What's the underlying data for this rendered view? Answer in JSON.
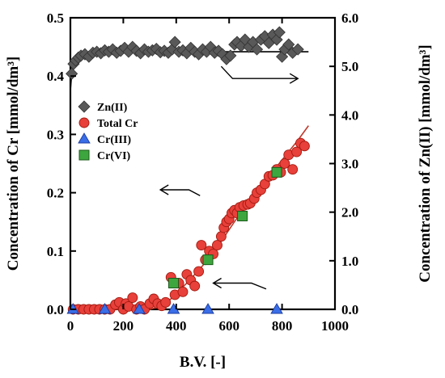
{
  "chart_data": {
    "type": "scatter",
    "xlabel": "B.V. [-]",
    "ylabel_left": "Concentration of Cr [mmol/dm³]",
    "ylabel_right": "Concentration of Zn(II) [mmol/dm³]",
    "xlim": [
      0,
      1000
    ],
    "ylim_left": [
      0,
      0.5
    ],
    "ylim_right": [
      0,
      6
    ],
    "x_ticks": [
      0,
      200,
      400,
      600,
      800,
      1000
    ],
    "x_tick_labels": [
      "0",
      "200",
      "400",
      "600",
      "800",
      "1000"
    ],
    "y_left_ticks": [
      0,
      0.1,
      0.2,
      0.3,
      0.4,
      0.5
    ],
    "y_left_tick_labels": [
      "0.0",
      "0.1",
      "0.2",
      "0.3",
      "0.4",
      "0.5"
    ],
    "y_right_ticks": [
      0,
      1,
      2,
      3,
      4,
      5,
      6
    ],
    "y_right_tick_labels": [
      "0.0",
      "1.0",
      "2.0",
      "3.0",
      "4.0",
      "5.0",
      "6.0"
    ],
    "grid": false,
    "legend_position": "left-middle",
    "colors": {
      "zn": "#595959",
      "total_cr": "#e8403a",
      "cr3": "#3a6ee8",
      "cr6": "#3ea63e",
      "fit": "#c0392b"
    },
    "series": [
      {
        "name": "Zn(II)",
        "axis": "right",
        "marker": "diamond",
        "points": [
          [
            5,
            4.85
          ],
          [
            12,
            5.05
          ],
          [
            20,
            5.12
          ],
          [
            30,
            5.18
          ],
          [
            40,
            5.22
          ],
          [
            55,
            5.25
          ],
          [
            70,
            5.2
          ],
          [
            85,
            5.28
          ],
          [
            100,
            5.3
          ],
          [
            115,
            5.27
          ],
          [
            130,
            5.33
          ],
          [
            145,
            5.3
          ],
          [
            160,
            5.35
          ],
          [
            175,
            5.28
          ],
          [
            190,
            5.32
          ],
          [
            205,
            5.38
          ],
          [
            220,
            5.3
          ],
          [
            235,
            5.4
          ],
          [
            250,
            5.32
          ],
          [
            265,
            5.27
          ],
          [
            280,
            5.35
          ],
          [
            295,
            5.3
          ],
          [
            310,
            5.33
          ],
          [
            325,
            5.36
          ],
          [
            340,
            5.29
          ],
          [
            355,
            5.32
          ],
          [
            370,
            5.28
          ],
          [
            385,
            5.35
          ],
          [
            395,
            5.5
          ],
          [
            410,
            5.3
          ],
          [
            425,
            5.33
          ],
          [
            440,
            5.27
          ],
          [
            455,
            5.38
          ],
          [
            470,
            5.3
          ],
          [
            485,
            5.25
          ],
          [
            500,
            5.35
          ],
          [
            515,
            5.3
          ],
          [
            530,
            5.4
          ],
          [
            545,
            5.28
          ],
          [
            560,
            5.32
          ],
          [
            575,
            5.25
          ],
          [
            590,
            5.15
          ],
          [
            605,
            5.22
          ],
          [
            620,
            5.45
          ],
          [
            630,
            5.5
          ],
          [
            645,
            5.42
          ],
          [
            660,
            5.55
          ],
          [
            675,
            5.4
          ],
          [
            690,
            5.5
          ],
          [
            705,
            5.35
          ],
          [
            720,
            5.55
          ],
          [
            735,
            5.62
          ],
          [
            750,
            5.48
          ],
          [
            765,
            5.65
          ],
          [
            780,
            5.55
          ],
          [
            790,
            5.7
          ],
          [
            800,
            5.2
          ],
          [
            810,
            5.35
          ],
          [
            825,
            5.45
          ],
          [
            840,
            5.28
          ],
          [
            860,
            5.35
          ]
        ]
      },
      {
        "name": "Total Cr",
        "axis": "left",
        "marker": "circle",
        "points": [
          [
            10,
            0.0
          ],
          [
            30,
            0.0
          ],
          [
            50,
            0.0
          ],
          [
            70,
            0.0
          ],
          [
            90,
            0.0
          ],
          [
            110,
            0.0
          ],
          [
            130,
            0.0
          ],
          [
            150,
            0.0
          ],
          [
            170,
            0.008
          ],
          [
            185,
            0.012
          ],
          [
            200,
            0.0
          ],
          [
            210,
            0.01
          ],
          [
            220,
            0.005
          ],
          [
            235,
            0.02
          ],
          [
            250,
            0.0
          ],
          [
            265,
            0.005
          ],
          [
            280,
            0.0
          ],
          [
            300,
            0.01
          ],
          [
            315,
            0.018
          ],
          [
            330,
            0.01
          ],
          [
            345,
            0.006
          ],
          [
            360,
            0.012
          ],
          [
            380,
            0.055
          ],
          [
            395,
            0.025
          ],
          [
            410,
            0.045
          ],
          [
            425,
            0.03
          ],
          [
            440,
            0.06
          ],
          [
            455,
            0.05
          ],
          [
            470,
            0.04
          ],
          [
            485,
            0.065
          ],
          [
            495,
            0.11
          ],
          [
            510,
            0.085
          ],
          [
            525,
            0.1
          ],
          [
            540,
            0.095
          ],
          [
            555,
            0.11
          ],
          [
            570,
            0.125
          ],
          [
            580,
            0.14
          ],
          [
            590,
            0.15
          ],
          [
            600,
            0.155
          ],
          [
            610,
            0.165
          ],
          [
            620,
            0.17
          ],
          [
            630,
            0.165
          ],
          [
            640,
            0.175
          ],
          [
            655,
            0.178
          ],
          [
            670,
            0.18
          ],
          [
            680,
            0.182
          ],
          [
            695,
            0.19
          ],
          [
            705,
            0.2
          ],
          [
            720,
            0.205
          ],
          [
            735,
            0.215
          ],
          [
            750,
            0.228
          ],
          [
            765,
            0.23
          ],
          [
            780,
            0.24
          ],
          [
            795,
            0.235
          ],
          [
            810,
            0.25
          ],
          [
            825,
            0.265
          ],
          [
            840,
            0.24
          ],
          [
            855,
            0.27
          ],
          [
            870,
            0.285
          ],
          [
            885,
            0.28
          ]
        ]
      },
      {
        "name": "Cr(III)",
        "axis": "left",
        "marker": "triangle",
        "points": [
          [
            10,
            0.0
          ],
          [
            130,
            0.0
          ],
          [
            260,
            0.0
          ],
          [
            390,
            0.0
          ],
          [
            520,
            0.0
          ],
          [
            780,
            0.0
          ]
        ]
      },
      {
        "name": "Cr(VI)",
        "axis": "left",
        "marker": "square",
        "points": [
          [
            390,
            0.045
          ],
          [
            520,
            0.085
          ],
          [
            650,
            0.16
          ],
          [
            780,
            0.235
          ]
        ]
      }
    ],
    "fit_lines": [
      {
        "axis": "right",
        "points": [
          [
            0,
            4.5
          ],
          [
            5,
            4.85
          ],
          [
            15,
            5.05
          ],
          [
            40,
            5.2
          ],
          [
            80,
            5.27
          ],
          [
            150,
            5.3
          ],
          [
            300,
            5.3
          ],
          [
            500,
            5.3
          ],
          [
            700,
            5.3
          ],
          [
            900,
            5.3
          ]
        ]
      },
      {
        "axis": "left",
        "points": [
          [
            0,
            0
          ],
          [
            300,
            0
          ],
          [
            340,
            0.005
          ],
          [
            380,
            0.018
          ],
          [
            440,
            0.045
          ],
          [
            500,
            0.075
          ],
          [
            560,
            0.11
          ],
          [
            620,
            0.15
          ],
          [
            700,
            0.2
          ],
          [
            780,
            0.245
          ],
          [
            860,
            0.29
          ],
          [
            900,
            0.315
          ]
        ]
      }
    ],
    "annotation_arrows": [
      {
        "direction": "right",
        "from": [
          570,
          5.0
        ],
        "to": [
          860,
          4.75
        ],
        "axis": "right"
      },
      {
        "direction": "left",
        "from": [
          490,
          0.195
        ],
        "to": [
          340,
          0.205
        ],
        "axis": "left"
      },
      {
        "direction": "left",
        "from": [
          740,
          0.035
        ],
        "to": [
          540,
          0.045
        ],
        "axis": "left"
      }
    ]
  }
}
